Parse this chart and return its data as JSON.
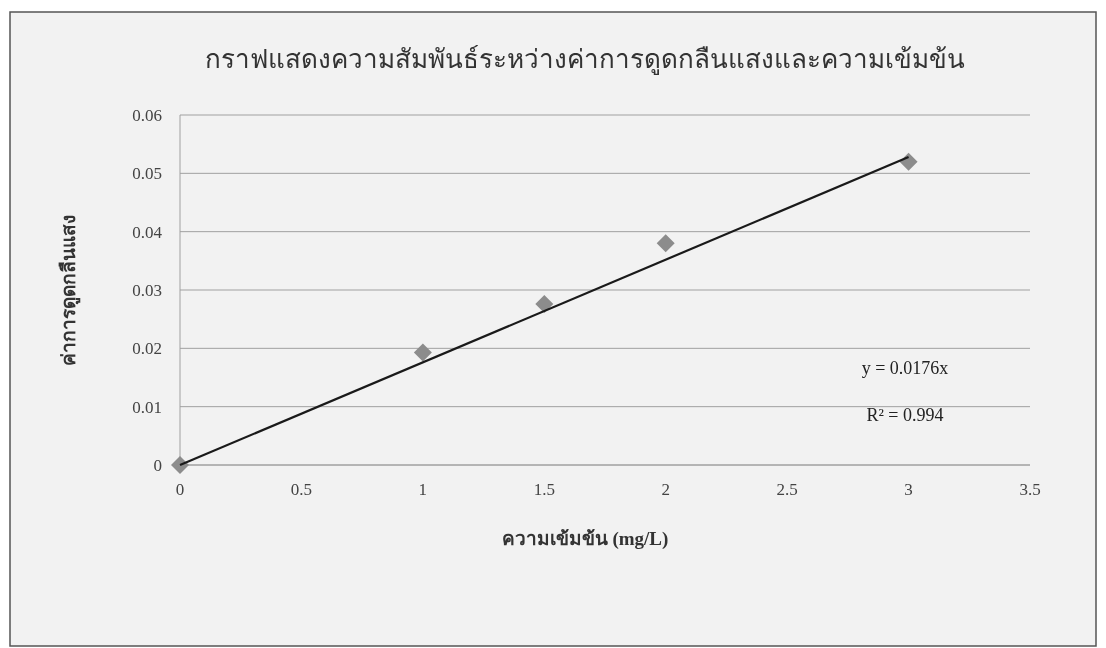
{
  "chart_data": {
    "type": "scatter",
    "title": "กราฟแสดงความสัมพันธ์ระหว่างค่าการดูดกลืนแสงและความเข้มข้น",
    "xlabel": "ความเข้มข้น (mg/L)",
    "ylabel": "ค่าการดูดกลืนแสง",
    "series": [
      {
        "color": "#8c8c8c",
        "marker": "diamond",
        "x": [
          0,
          1,
          1.5,
          2,
          3
        ],
        "values": [
          0,
          0.0193,
          0.0276,
          0.038,
          0.052
        ]
      },
      {
        "type": "line",
        "color": "#1a1a1a",
        "marker": "none",
        "line_style": "solid",
        "x": [
          0,
          3
        ],
        "values": [
          0,
          0.0528
        ]
      }
    ],
    "xlim": [
      0,
      3.5
    ],
    "xticks": [
      0,
      0.5,
      1,
      1.5,
      2,
      2.5,
      3,
      3.5
    ],
    "ylim": [
      0,
      0.06
    ],
    "yticks": [
      0,
      0.01,
      0.02,
      0.03,
      0.04,
      0.05,
      0.06
    ],
    "grid": "y",
    "annotations": [
      "y = 0.0176x",
      "R² = 0.994"
    ]
  }
}
